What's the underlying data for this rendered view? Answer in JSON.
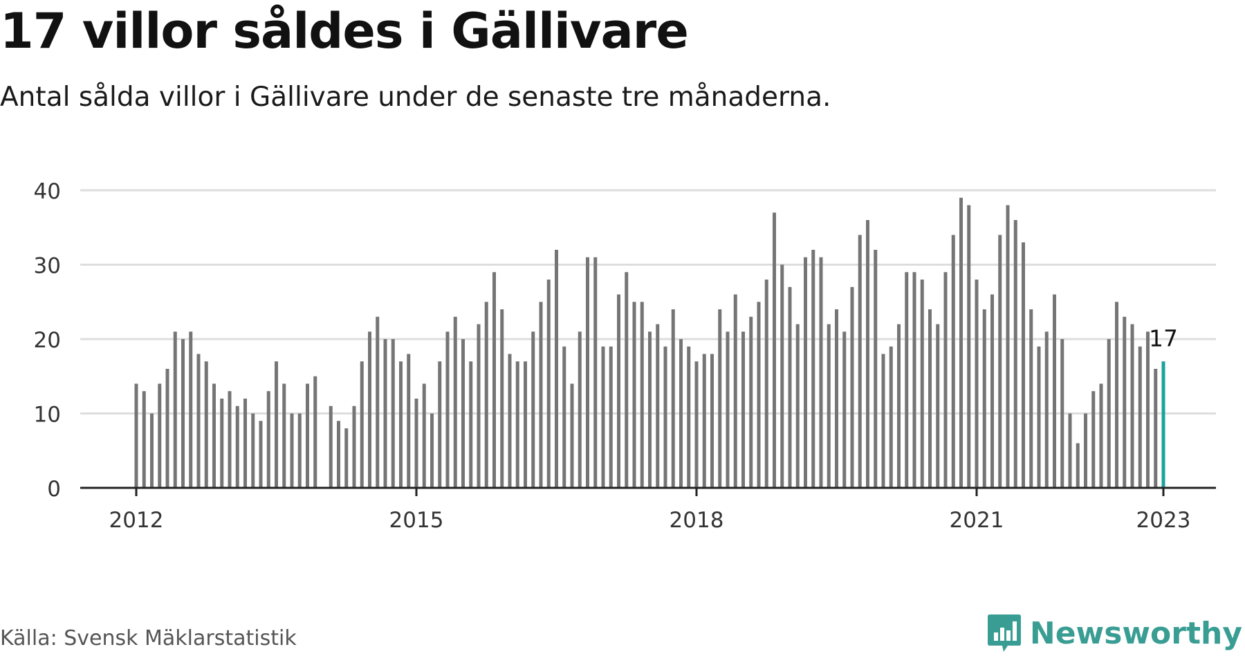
{
  "title": "17 villor såldes i Gällivare",
  "subtitle": "Antal sålda villor i Gällivare under de senaste tre månaderna.",
  "source": "Källa: Svensk Mäklarstatistik",
  "brand": {
    "name": "Newsworthy",
    "icon": "newsworthy-logo-icon",
    "color": "#3a9d93"
  },
  "colors": {
    "bar": "#757575",
    "highlight": "#1aa39a",
    "grid": "#dddddd",
    "axis": "#222222",
    "text": "#333333"
  },
  "chart_data": {
    "type": "bar",
    "title": "17 villor såldes i Gällivare",
    "xlabel": "",
    "ylabel": "",
    "ylim": [
      0,
      40
    ],
    "yticks": [
      "0",
      "10",
      "20",
      "30",
      "40"
    ],
    "xticks": [
      "2012",
      "2015",
      "2018",
      "2021",
      "2023"
    ],
    "start": "2012-01",
    "end": "2023-01",
    "grid": true,
    "highlight_label": "17",
    "values": [
      14,
      13,
      10,
      14,
      16,
      21,
      20,
      21,
      18,
      17,
      14,
      12,
      13,
      11,
      12,
      10,
      9,
      13,
      17,
      14,
      10,
      10,
      14,
      15,
      0,
      11,
      9,
      8,
      11,
      17,
      21,
      23,
      20,
      20,
      17,
      18,
      12,
      14,
      10,
      17,
      21,
      23,
      20,
      17,
      22,
      25,
      29,
      24,
      18,
      17,
      17,
      21,
      25,
      28,
      32,
      19,
      14,
      21,
      31,
      31,
      19,
      19,
      26,
      29,
      25,
      25,
      21,
      22,
      19,
      24,
      20,
      19,
      17,
      18,
      18,
      24,
      21,
      26,
      21,
      23,
      25,
      28,
      37,
      30,
      27,
      22,
      31,
      32,
      31,
      22,
      24,
      21,
      27,
      34,
      36,
      32,
      18,
      19,
      22,
      29,
      29,
      28,
      24,
      22,
      29,
      34,
      39,
      38,
      28,
      24,
      26,
      34,
      38,
      36,
      33,
      24,
      19,
      21,
      26,
      20,
      10,
      6,
      10,
      13,
      14,
      20,
      25,
      23,
      22,
      19,
      21,
      16,
      17
    ]
  }
}
